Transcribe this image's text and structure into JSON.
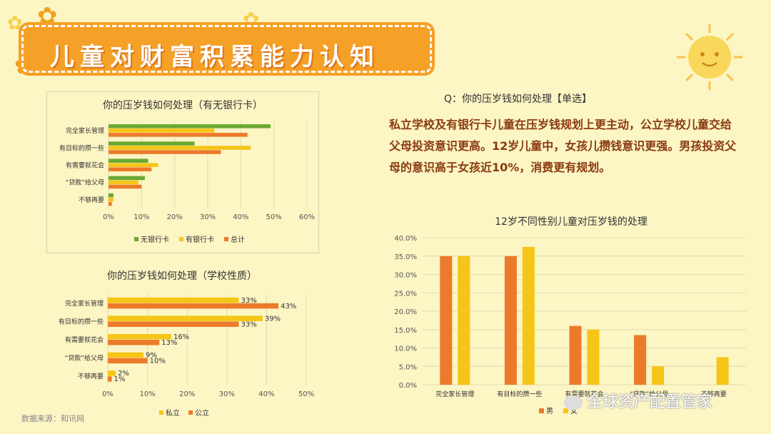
{
  "header": {
    "title": "儿童对财富积累能力认知"
  },
  "question": "Q：你的压岁钱如何处理【单选】",
  "summary": "私立学校及有银行卡儿童在压岁钱规划上更主动，公立学校儿童交给父母投资意识更高。12岁儿童中，女孩儿攒钱意识更强。男孩投资父母的意识高于女孩近10%，消费更有规划。",
  "source": "数据来源：和讯网",
  "watermark": "全球资产配置管家",
  "colors": {
    "green": "#6aa832",
    "yellow": "#f5c518",
    "orange": "#ec7a2c",
    "background": "#fcf5c4",
    "banner": "#f5a026"
  },
  "chart_data": [
    {
      "type": "bar",
      "orientation": "horizontal",
      "title": "你的压岁钱如何处理（有无银行卡）",
      "categories": [
        "完全家长管理",
        "有目标的攒一些",
        "有需要就花会",
        "“贷款”给父母",
        "不够再要"
      ],
      "series": [
        {
          "name": "无银行卡",
          "color": "#6aa832",
          "values": [
            49,
            26,
            12,
            11,
            1.5
          ]
        },
        {
          "name": "有银行卡",
          "color": "#f5c518",
          "values": [
            32,
            43,
            15,
            9,
            1.5
          ]
        },
        {
          "name": "总计",
          "color": "#ec7a2c",
          "values": [
            42,
            34,
            13,
            10,
            1
          ]
        }
      ],
      "xlim": [
        0,
        60
      ],
      "xticks": [
        "0%",
        "10%",
        "20%",
        "30%",
        "40%",
        "50%",
        "60%"
      ],
      "legend": "bottom"
    },
    {
      "type": "bar",
      "orientation": "horizontal",
      "title": "你的压岁钱如何处理（学校性质）",
      "categories": [
        "完全家长管理",
        "有目标的攒一些",
        "有需要就花会",
        "“贷款”给父母",
        "不够再要"
      ],
      "series": [
        {
          "name": "私立",
          "color": "#f5c518",
          "values": [
            33,
            39,
            16,
            9,
            2
          ],
          "labels": [
            "33%",
            "39%",
            "16%",
            "9%",
            "2%"
          ]
        },
        {
          "name": "公立",
          "color": "#ec7a2c",
          "values": [
            43,
            33,
            13,
            10,
            1
          ],
          "labels": [
            "43%",
            "33%",
            "13%",
            "10%",
            "1%"
          ]
        }
      ],
      "xlim": [
        0,
        50
      ],
      "xticks": [
        "0%",
        "10%",
        "20%",
        "30%",
        "40%",
        "50%"
      ],
      "legend": "bottom"
    },
    {
      "type": "bar",
      "orientation": "vertical",
      "title": "12岁不同性别儿童对压岁钱的处理",
      "categories": [
        "完全家长管理",
        "有目标的攒一些",
        "有需要就花会",
        "“贷款”给父母",
        "不够再要"
      ],
      "series": [
        {
          "name": "男",
          "color": "#ec7a2c",
          "values": [
            35,
            35,
            16,
            13.5,
            0
          ]
        },
        {
          "name": "女",
          "color": "#f5c518",
          "values": [
            35,
            37.5,
            15,
            5,
            7.5
          ]
        }
      ],
      "ylim": [
        0,
        40
      ],
      "yticks": [
        "0.0%",
        "5.0%",
        "10.0%",
        "15.0%",
        "20.0%",
        "25.0%",
        "30.0%",
        "35.0%",
        "40.0%"
      ],
      "legend": "bottom"
    }
  ]
}
